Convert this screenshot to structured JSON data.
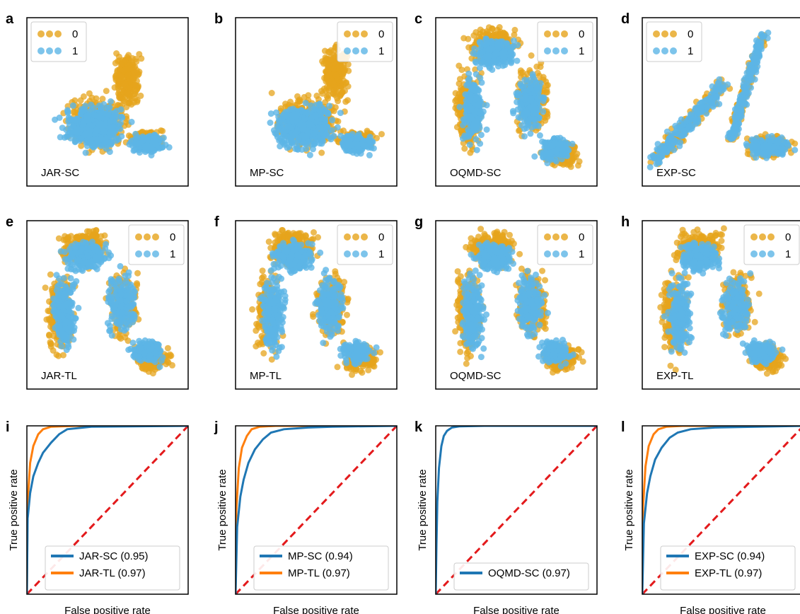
{
  "colors": {
    "class_0": "#E6A41C",
    "class_1": "#5DB5E6",
    "sc_curve": "#1F77B4",
    "tl_curve": "#FF7F0E",
    "diagonal": "#E31A1C"
  },
  "chart_data": [
    {
      "panel": "a",
      "type": "scatter",
      "embedding_label": "JAR-SC",
      "legend": [
        "0",
        "1"
      ],
      "shape": "blob"
    },
    {
      "panel": "b",
      "type": "scatter",
      "embedding_label": "MP-SC",
      "legend": [
        "0",
        "1"
      ],
      "shape": "blob"
    },
    {
      "panel": "c",
      "type": "scatter",
      "embedding_label": "OQMD-SC",
      "legend": [
        "0",
        "1"
      ],
      "shape": "arch"
    },
    {
      "panel": "d",
      "type": "scatter",
      "embedding_label": "EXP-SC",
      "legend": [
        "0",
        "1"
      ],
      "shape": "branch"
    },
    {
      "panel": "e",
      "type": "scatter",
      "embedding_label": "JAR-TL",
      "legend": [
        "0",
        "1"
      ],
      "shape": "arch"
    },
    {
      "panel": "f",
      "type": "scatter",
      "embedding_label": "MP-TL",
      "legend": [
        "0",
        "1"
      ],
      "shape": "arch"
    },
    {
      "panel": "g",
      "type": "scatter",
      "embedding_label": "OQMD-SC",
      "legend": [
        "0",
        "1"
      ],
      "shape": "arch"
    },
    {
      "panel": "h",
      "type": "scatter",
      "embedding_label": "EXP-TL",
      "legend": [
        "0",
        "1"
      ],
      "shape": "arch"
    },
    {
      "panel": "i",
      "type": "line",
      "xlabel": "False positive rate",
      "ylabel": "True positive rate",
      "xlim": [
        0,
        1
      ],
      "ylim": [
        0,
        1
      ],
      "series": [
        {
          "name": "JAR-SC (0.95)",
          "color": "#1F77B4",
          "points": [
            [
              0,
              0
            ],
            [
              0.005,
              0.45
            ],
            [
              0.02,
              0.6
            ],
            [
              0.04,
              0.7
            ],
            [
              0.07,
              0.78
            ],
            [
              0.1,
              0.84
            ],
            [
              0.15,
              0.9
            ],
            [
              0.2,
              0.95
            ],
            [
              0.25,
              0.98
            ],
            [
              0.4,
              0.995
            ],
            [
              1,
              1
            ]
          ]
        },
        {
          "name": "JAR-TL (0.97)",
          "color": "#FF7F0E",
          "points": [
            [
              0,
              0
            ],
            [
              0.005,
              0.55
            ],
            [
              0.02,
              0.78
            ],
            [
              0.04,
              0.88
            ],
            [
              0.07,
              0.95
            ],
            [
              0.1,
              0.98
            ],
            [
              0.15,
              0.995
            ],
            [
              0.3,
              1
            ],
            [
              1,
              1
            ]
          ]
        }
      ],
      "diagonal": true
    },
    {
      "panel": "j",
      "type": "line",
      "xlabel": "False positive rate",
      "ylabel": "True positive rate",
      "xlim": [
        0,
        1
      ],
      "ylim": [
        0,
        1
      ],
      "series": [
        {
          "name": "MP-SC (0.94)",
          "color": "#1F77B4",
          "points": [
            [
              0,
              0
            ],
            [
              0.01,
              0.4
            ],
            [
              0.03,
              0.58
            ],
            [
              0.05,
              0.68
            ],
            [
              0.08,
              0.78
            ],
            [
              0.12,
              0.86
            ],
            [
              0.17,
              0.92
            ],
            [
              0.22,
              0.96
            ],
            [
              0.3,
              0.98
            ],
            [
              0.45,
              0.99
            ],
            [
              0.6,
              0.995
            ],
            [
              1,
              1
            ]
          ]
        },
        {
          "name": "MP-TL (0.97)",
          "color": "#FF7F0E",
          "points": [
            [
              0,
              0
            ],
            [
              0.005,
              0.5
            ],
            [
              0.02,
              0.75
            ],
            [
              0.04,
              0.87
            ],
            [
              0.07,
              0.94
            ],
            [
              0.1,
              0.98
            ],
            [
              0.15,
              0.995
            ],
            [
              0.25,
              1
            ],
            [
              1,
              1
            ]
          ]
        }
      ],
      "diagonal": true
    },
    {
      "panel": "k",
      "type": "line",
      "xlabel": "False positive rate",
      "ylabel": "True positive rate",
      "xlim": [
        0,
        1
      ],
      "ylim": [
        0,
        1
      ],
      "series": [
        {
          "name": "OQMD-SC (0.97)",
          "color": "#1F77B4",
          "points": [
            [
              0,
              0
            ],
            [
              0.005,
              0.3
            ],
            [
              0.01,
              0.55
            ],
            [
              0.02,
              0.75
            ],
            [
              0.035,
              0.88
            ],
            [
              0.05,
              0.94
            ],
            [
              0.07,
              0.97
            ],
            [
              0.1,
              0.99
            ],
            [
              0.15,
              0.997
            ],
            [
              0.3,
              1
            ],
            [
              1,
              1
            ]
          ]
        }
      ],
      "diagonal": true
    },
    {
      "panel": "l",
      "type": "line",
      "xlabel": "False positive rate",
      "ylabel": "True positive rate",
      "xlim": [
        0,
        1
      ],
      "ylim": [
        0,
        1
      ],
      "series": [
        {
          "name": "EXP-SC (0.94)",
          "color": "#1F77B4",
          "points": [
            [
              0,
              0
            ],
            [
              0.01,
              0.42
            ],
            [
              0.03,
              0.6
            ],
            [
              0.05,
              0.7
            ],
            [
              0.08,
              0.8
            ],
            [
              0.12,
              0.87
            ],
            [
              0.17,
              0.93
            ],
            [
              0.22,
              0.96
            ],
            [
              0.3,
              0.98
            ],
            [
              0.45,
              0.99
            ],
            [
              1,
              1
            ]
          ]
        },
        {
          "name": "EXP-TL (0.97)",
          "color": "#FF7F0E",
          "points": [
            [
              0,
              0
            ],
            [
              0.005,
              0.52
            ],
            [
              0.02,
              0.76
            ],
            [
              0.04,
              0.88
            ],
            [
              0.07,
              0.95
            ],
            [
              0.1,
              0.98
            ],
            [
              0.15,
              0.995
            ],
            [
              0.25,
              1
            ],
            [
              1,
              1
            ]
          ]
        }
      ],
      "diagonal": true
    }
  ]
}
